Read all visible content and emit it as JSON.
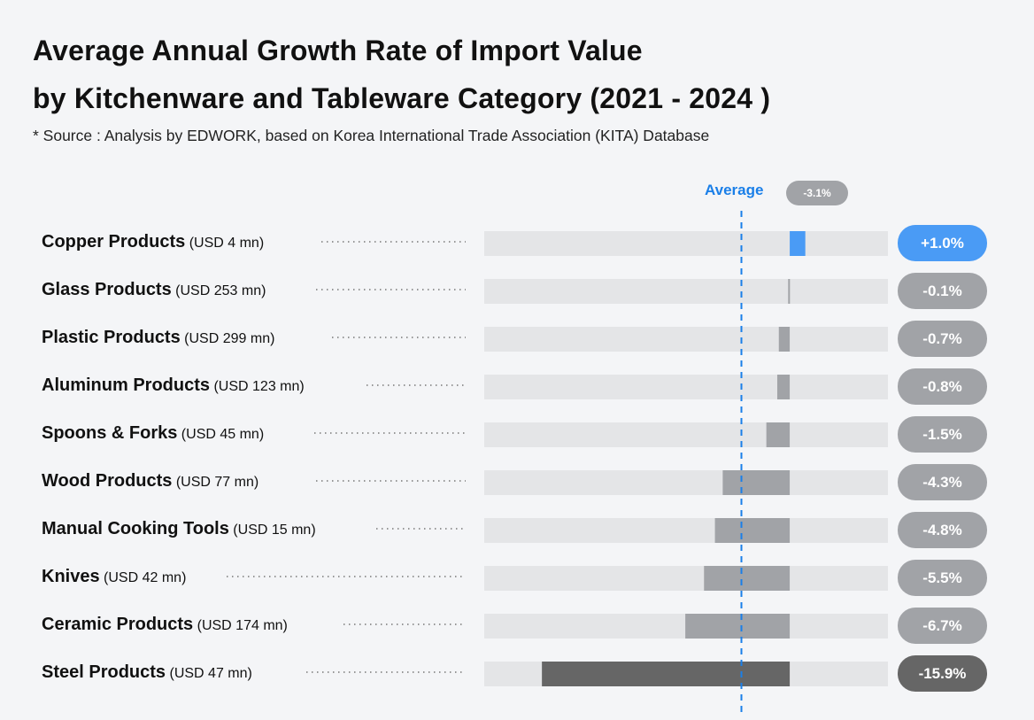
{
  "title_line1": "Average Annual Growth Rate of Import Value",
  "title_line2": "by Kitchenware and Tableware Category (2021 - 2024 )",
  "source": "* Source : Analysis by EDWORK, based on Korea International Trade Association (KITA) Database",
  "colors": {
    "positive": "#4a9bf5",
    "negative": "#a1a3a7",
    "highlight": "#666666",
    "track": "#e4e5e7",
    "average": "#1a7fe8"
  },
  "chart_data": {
    "type": "bar",
    "orientation": "horizontal",
    "title": "Average Annual Growth Rate of Import Value by Kitchenware and Tableware Category (2021 - 2024 )",
    "unit": "%",
    "average": {
      "label": "Average",
      "value": -3.1,
      "display": "-3.1%"
    },
    "categories": [
      "Copper Products",
      "Glass Products",
      "Plastic Products",
      "Aluminum Products",
      "Spoons & Forks",
      "Wood Products",
      "Manual Cooking Tools",
      "Knives",
      "Ceramic Products",
      "Steel Products"
    ],
    "sublabels": [
      "(USD 4 mn)",
      "(USD 253 mn)",
      "(USD 299 mn)",
      "(USD 123 mn)",
      "(USD 45 mn)",
      "(USD 77 mn)",
      "(USD 15 mn)",
      "(USD 42 mn)",
      "(USD 174 mn)",
      "(USD 47 mn)"
    ],
    "values": [
      1.0,
      -0.1,
      -0.7,
      -0.8,
      -1.5,
      -4.3,
      -4.8,
      -5.5,
      -6.7,
      -15.9
    ],
    "value_labels": [
      "+1.0%",
      "-0.1%",
      "-0.7%",
      "-0.8%",
      "-1.5%",
      "-4.3%",
      "-4.8%",
      "-5.5%",
      "-6.7%",
      "-15.9%"
    ],
    "xlim": [
      -19.6,
      6.3
    ]
  }
}
